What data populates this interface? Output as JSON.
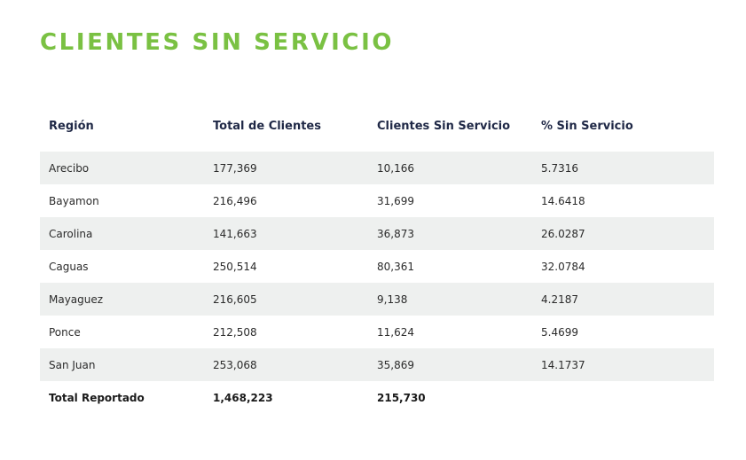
{
  "title": "CLIENTES SIN SERVICIO",
  "table": {
    "headers": [
      "Región",
      "Total de Clientes",
      "Clientes Sin Servicio",
      "% Sin Servicio"
    ],
    "rows": [
      [
        "Arecibo",
        "177,369",
        "10,166",
        "5.7316"
      ],
      [
        "Bayamon",
        "216,496",
        "31,699",
        "14.6418"
      ],
      [
        "Carolina",
        "141,663",
        "36,873",
        "26.0287"
      ],
      [
        "Caguas",
        "250,514",
        "80,361",
        "32.0784"
      ],
      [
        "Mayaguez",
        "216,605",
        "9,138",
        "4.2187"
      ],
      [
        "Ponce",
        "212,508",
        "11,624",
        "5.4699"
      ],
      [
        "San Juan",
        "253,068",
        "35,869",
        "14.1737"
      ]
    ],
    "total": [
      "Total Reportado",
      "1,468,223",
      "215,730",
      ""
    ]
  },
  "colors": {
    "title": "#7ac143",
    "header_text": "#1f2846",
    "row_shade": "#eef0ef"
  }
}
